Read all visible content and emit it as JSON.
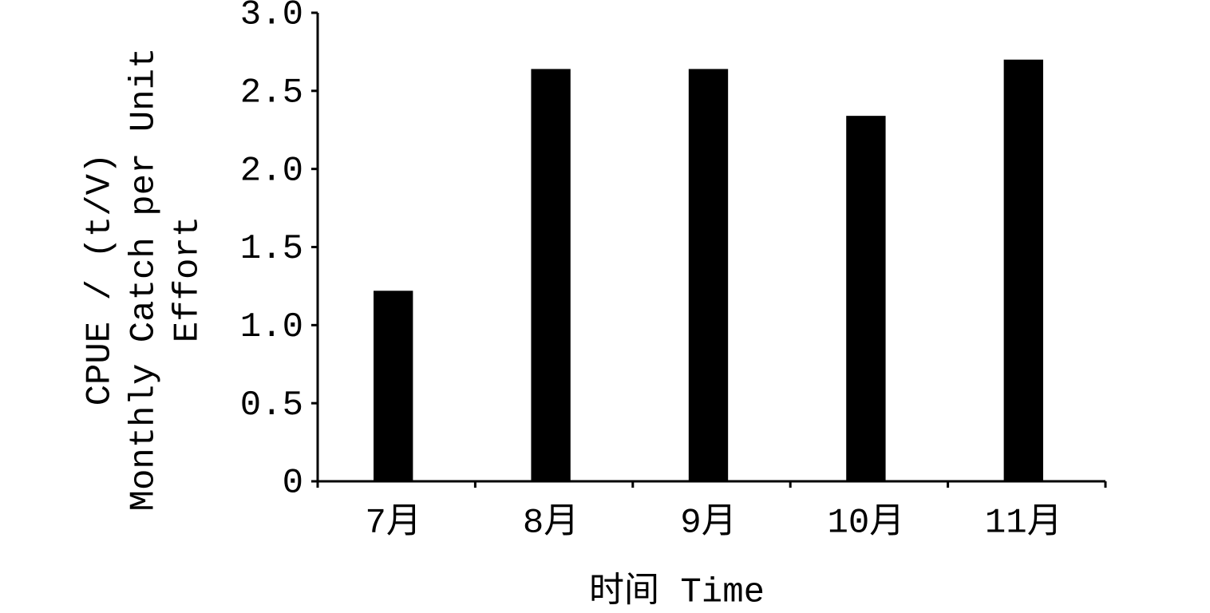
{
  "chart_data": {
    "type": "bar",
    "categories": [
      "7月",
      "8月",
      "9月",
      "10月",
      "11月"
    ],
    "values": [
      1.22,
      2.64,
      2.64,
      2.34,
      2.7
    ],
    "color": "#000000",
    "xlabel": "时间 Time",
    "ylabel": [
      "CPUE / (t/V)",
      "Monthly Catch per Unit",
      "Effort"
    ],
    "ylim": [
      0,
      3.0
    ],
    "yticks": [
      0,
      {
        "value": 0.5,
        "label": "0.5"
      },
      {
        "value": 1.0,
        "label": "1.0"
      },
      {
        "value": 1.5,
        "label": "1.5"
      },
      {
        "value": 2.0,
        "label": "2.0"
      },
      {
        "value": 2.5,
        "label": "2.5"
      },
      {
        "value": 3.0,
        "label": "3.0"
      }
    ],
    "grid": false
  }
}
